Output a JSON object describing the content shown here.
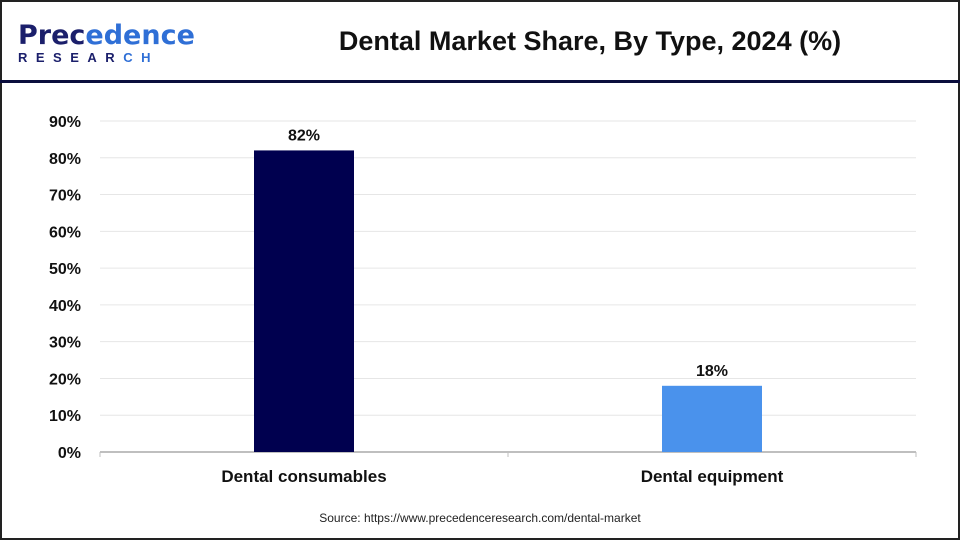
{
  "header": {
    "logo_text_top": "Precedence",
    "logo_text_bottom": "RESEARCH",
    "title": "Dental Market Share, By Type, 2024 (%)"
  },
  "source": "Source: https://www.precedenceresearch.com/dental-market",
  "chart_data": {
    "type": "bar",
    "title": "Dental Market Share, By Type, 2024 (%)",
    "categories": [
      "Dental consumables",
      "Dental equipment"
    ],
    "values": [
      82,
      18
    ],
    "data_labels": [
      "82%",
      "18%"
    ],
    "bar_colors": [
      "#00004f",
      "#4a92ec"
    ],
    "ylim": [
      0,
      90
    ],
    "yticks": [
      "0%",
      "10%",
      "20%",
      "30%",
      "40%",
      "50%",
      "60%",
      "70%",
      "80%",
      "90%"
    ],
    "grid": true,
    "legend": "none",
    "xlabel": "",
    "ylabel": ""
  }
}
